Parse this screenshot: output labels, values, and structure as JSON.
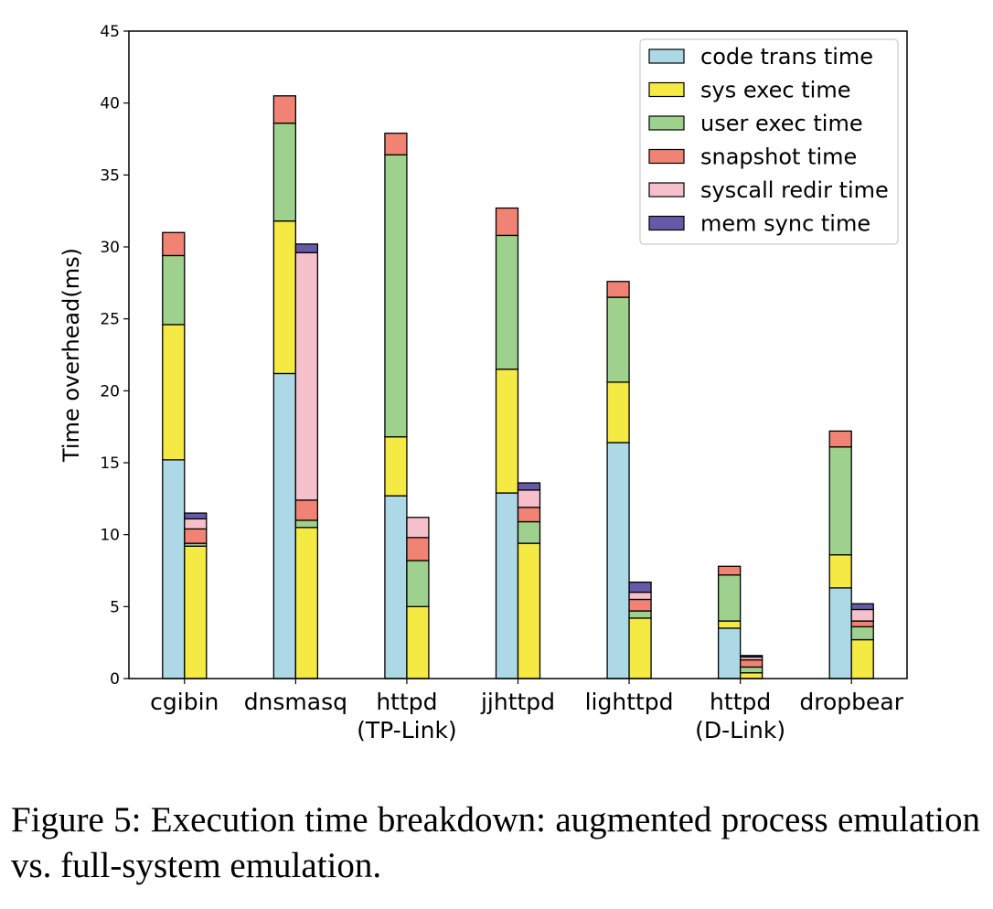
{
  "chart_data": {
    "type": "bar",
    "stacked": true,
    "grouped": true,
    "title": "",
    "xlabel": "",
    "ylabel": "Time overhead(ms)",
    "ylim": [
      0,
      45
    ],
    "yticks": [
      0,
      5,
      10,
      15,
      20,
      25,
      30,
      35,
      40,
      45
    ],
    "grid": false,
    "legend_position": "top-right",
    "categories": [
      "cgibin",
      "dnsmasq",
      "httpd\n(TP-Link)",
      "jjhttpd",
      "lighttpd",
      "httpd\n(D-Link)",
      "dropbear"
    ],
    "series": [
      {
        "name": "code trans time",
        "color": "#add8e6"
      },
      {
        "name": "sys exec time",
        "color": "#f5e944"
      },
      {
        "name": "user exec time",
        "color": "#9ed18e"
      },
      {
        "name": "snapshot time",
        "color": "#f08374"
      },
      {
        "name": "syscall redir time",
        "color": "#f5bfcb"
      },
      {
        "name": "mem sync time",
        "color": "#645aa8"
      }
    ],
    "groups": [
      {
        "name": "full-system emulation",
        "values": [
          [
            15.2,
            9.4,
            4.8,
            1.6,
            0,
            0
          ],
          [
            21.2,
            10.6,
            6.8,
            1.9,
            0,
            0
          ],
          [
            12.7,
            4.1,
            19.6,
            1.5,
            0,
            0
          ],
          [
            12.9,
            8.6,
            9.3,
            1.9,
            0,
            0
          ],
          [
            16.4,
            4.2,
            5.9,
            1.1,
            0,
            0
          ],
          [
            3.5,
            0.5,
            3.2,
            0.6,
            0,
            0
          ],
          [
            6.3,
            2.3,
            7.5,
            1.1,
            0,
            0
          ]
        ]
      },
      {
        "name": "augmented process emulation",
        "values": [
          [
            0,
            9.2,
            0.2,
            1.0,
            0.7,
            0.4
          ],
          [
            0,
            10.5,
            0.5,
            1.4,
            17.2,
            0.6
          ],
          [
            0,
            5.0,
            3.2,
            1.6,
            1.4,
            0
          ],
          [
            0,
            9.4,
            1.5,
            1.0,
            1.2,
            0.5
          ],
          [
            0,
            4.2,
            0.5,
            0.8,
            0.5,
            0.7
          ],
          [
            0,
            0.4,
            0.4,
            0.5,
            0.2,
            0.1
          ],
          [
            0,
            2.7,
            0.9,
            0.4,
            0.8,
            0.4
          ]
        ]
      }
    ]
  },
  "caption": "Figure 5: Execution time breakdown: augmented process emulation vs. full-system emulation."
}
